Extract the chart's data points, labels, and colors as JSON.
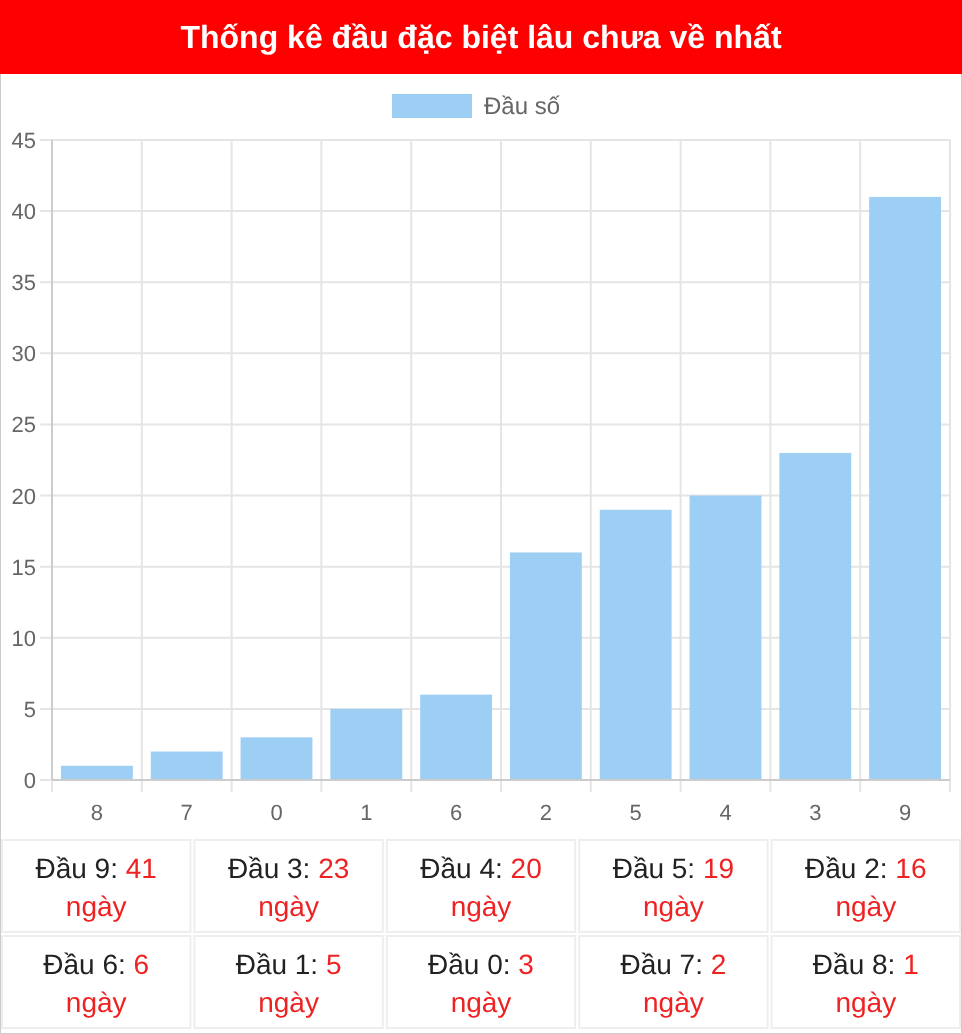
{
  "chart_data": {
    "type": "bar",
    "title": "Thống kê đầu đặc biệt lâu chưa về nhất",
    "categories": [
      "8",
      "7",
      "0",
      "1",
      "6",
      "2",
      "5",
      "4",
      "3",
      "9"
    ],
    "series": [
      {
        "name": "Đầu số",
        "color": "#9dcff5",
        "values": [
          1,
          2,
          3,
          5,
          6,
          16,
          19,
          20,
          23,
          41
        ]
      }
    ],
    "ylim": [
      0,
      45
    ],
    "yticks": [
      0,
      5,
      10,
      15,
      20,
      25,
      30,
      35,
      40,
      45
    ],
    "grid": true,
    "legend": "top",
    "annotations": [
      "Đầu 9: 41 ngày",
      "Đầu 3: 23 ngày",
      "Đầu 4: 20 ngày",
      "Đầu 5: 19 ngày",
      "Đầu 2: 16 ngày",
      "Đầu 6: 6 ngày",
      "Đầu 1: 5 ngày",
      "Đầu 0: 3 ngày",
      "Đầu 7: 2 ngày",
      "Đầu 8: 1 ngày"
    ]
  }
}
